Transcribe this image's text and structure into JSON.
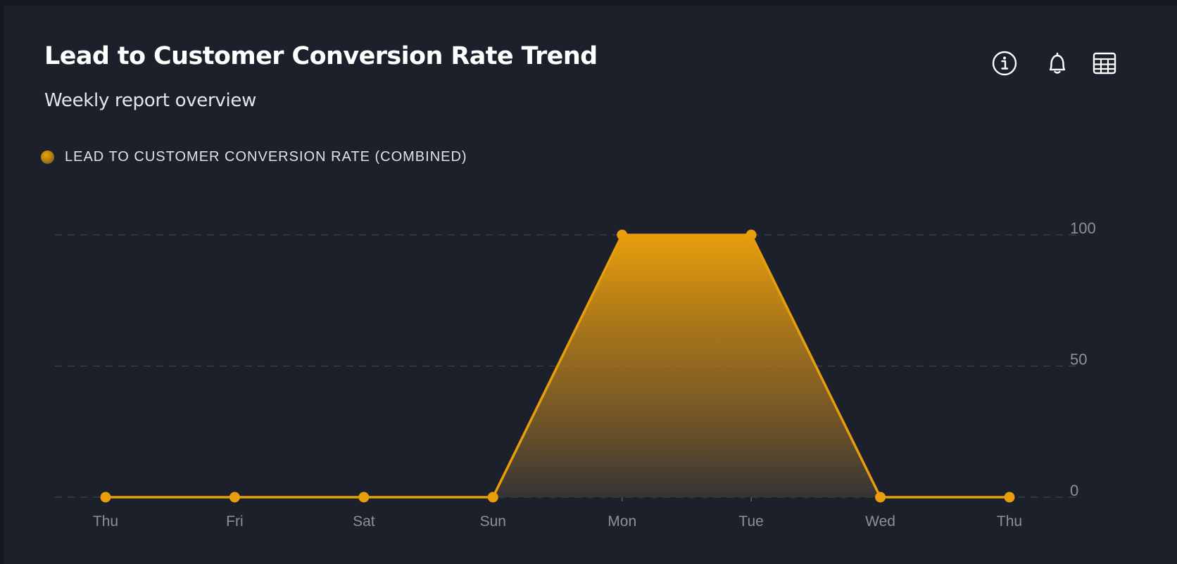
{
  "header": {
    "title": "Lead to Customer Conversion Rate Trend",
    "subtitle": "Weekly report overview"
  },
  "toolbar": {
    "icons": [
      "info-icon",
      "bell-icon",
      "table-icon"
    ]
  },
  "legend": {
    "label": "LEAD TO CUSTOMER CONVERSION RATE (COMBINED)"
  },
  "colors": {
    "accent": "#e89e0c",
    "background": "#1c202a",
    "grid": "#3c414c",
    "axis_text": "#8b9099"
  },
  "chart_data": {
    "type": "area",
    "categories": [
      "Thu",
      "Fri",
      "Sat",
      "Sun",
      "Mon",
      "Tue",
      "Wed",
      "Thu"
    ],
    "series": [
      {
        "name": "LEAD TO CUSTOMER CONVERSION RATE (COMBINED)",
        "values": [
          0,
          0,
          0,
          0,
          100,
          100,
          0,
          0
        ]
      }
    ],
    "yticks": [
      0,
      50,
      100
    ],
    "ylim": [
      0,
      100
    ],
    "yaxis_side": "right",
    "grid": true,
    "grid_style": "dashed",
    "legend_position": "top-left",
    "xlabel": "",
    "ylabel": ""
  }
}
